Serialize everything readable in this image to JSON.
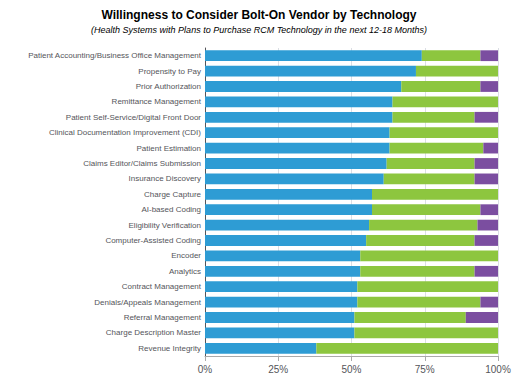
{
  "chart_data": {
    "type": "bar",
    "orientation": "horizontal",
    "stacked": true,
    "title": "Willingness to Consider Bolt-On Vendor by Technology",
    "subtitle": "(Health Systems with Plans to Purchase RCM Technology in the next 12-18 Months)",
    "categories": [
      "Patient Accounting/Business Office Management",
      "Propensity to Pay",
      "Prior Authorization",
      "Remittance Management",
      "Patient Self-Service/Digital Front Door",
      "Clinical Documentation Improvement (CDI)",
      "Patient Estimation",
      "Claims Editor/Claims Submission",
      "Insurance Discovery",
      "Charge Capture",
      "AI-based Coding",
      "Eligibility Verification",
      "Computer-Assisted Coding",
      "Encoder",
      "Analytics",
      "Contract Management",
      "Denials/Appeals Management",
      "Referral Management",
      "Charge Description Master",
      "Revenue Integrity"
    ],
    "series": [
      {
        "color": "#2E9CD4",
        "values": [
          74,
          72,
          67,
          64,
          64,
          63,
          63,
          62,
          61,
          57,
          57,
          56,
          55,
          53,
          53,
          52,
          52,
          51,
          51,
          38
        ]
      },
      {
        "color": "#8DC63F",
        "values": [
          20,
          28,
          27,
          36,
          28,
          37,
          32,
          30,
          31,
          43,
          37,
          37,
          37,
          47,
          39,
          48,
          42,
          38,
          49,
          62
        ]
      },
      {
        "color": "#7B4EA0",
        "values": [
          6,
          0,
          6,
          0,
          8,
          0,
          5,
          8,
          8,
          0,
          6,
          7,
          8,
          0,
          8,
          0,
          6,
          11,
          0,
          0
        ]
      }
    ],
    "xlim": [
      0,
      100
    ],
    "xticks": [
      {
        "value": 0,
        "label": "0%"
      },
      {
        "value": 25,
        "label": "25%"
      },
      {
        "value": 50,
        "label": "50%"
      },
      {
        "value": 75,
        "label": "75%"
      },
      {
        "value": 100,
        "label": "100%"
      }
    ],
    "grid": true
  }
}
